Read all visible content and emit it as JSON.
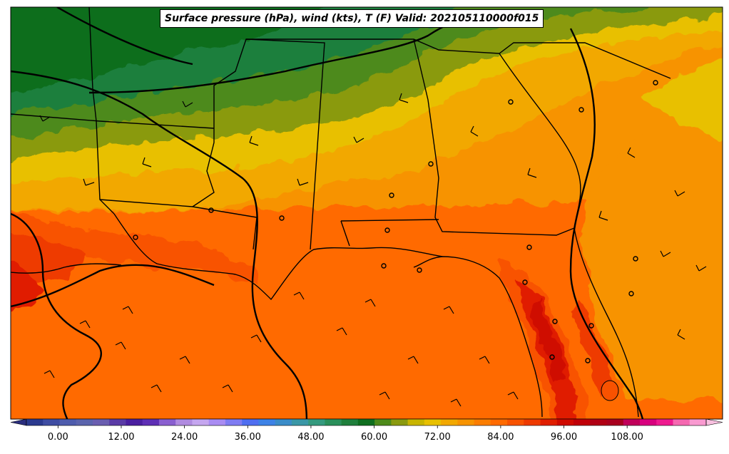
{
  "title": "Surface pressure (hPa), wind (kts), T (F) Valid: 202105110000f015",
  "colorbar": {
    "ticks": [
      "0.00",
      "12.00",
      "24.00",
      "36.00",
      "48.00",
      "60.00",
      "72.00",
      "84.00",
      "96.00",
      "108.00"
    ],
    "min": -6,
    "max": 123,
    "step": 3,
    "colors": [
      "#2b3a8f",
      "#3f4da3",
      "#4e5cad",
      "#5b64ad",
      "#6a5eb0",
      "#5a3ba6",
      "#4a1fa0",
      "#5e2fb5",
      "#8a5fd0",
      "#b08be0",
      "#c5a6ef",
      "#a98cf2",
      "#7f7cf2",
      "#4f6ef0",
      "#3d82e6",
      "#3a8cc8",
      "#3a97a6",
      "#359a7e",
      "#2a8f5a",
      "#1f7f3c",
      "#0f6e1f",
      "#4d8a1a",
      "#8a9a10",
      "#c8b400",
      "#e8c000",
      "#f2a800",
      "#f79300",
      "#fb7d00",
      "#ff6a00",
      "#f85200",
      "#ee3a00",
      "#e01e00",
      "#cf0a00",
      "#c00008",
      "#b00014",
      "#a8001e",
      "#c0005a",
      "#d8007e",
      "#ee1a8f",
      "#f568b0",
      "#f99ad0"
    ],
    "under_color": "#2a2e7e",
    "over_color": "#f9c0e0"
  },
  "legend": {
    "pressure": "Surface pressure (hPa)",
    "wind": "wind (kts)",
    "temperature": "T (F)"
  }
}
